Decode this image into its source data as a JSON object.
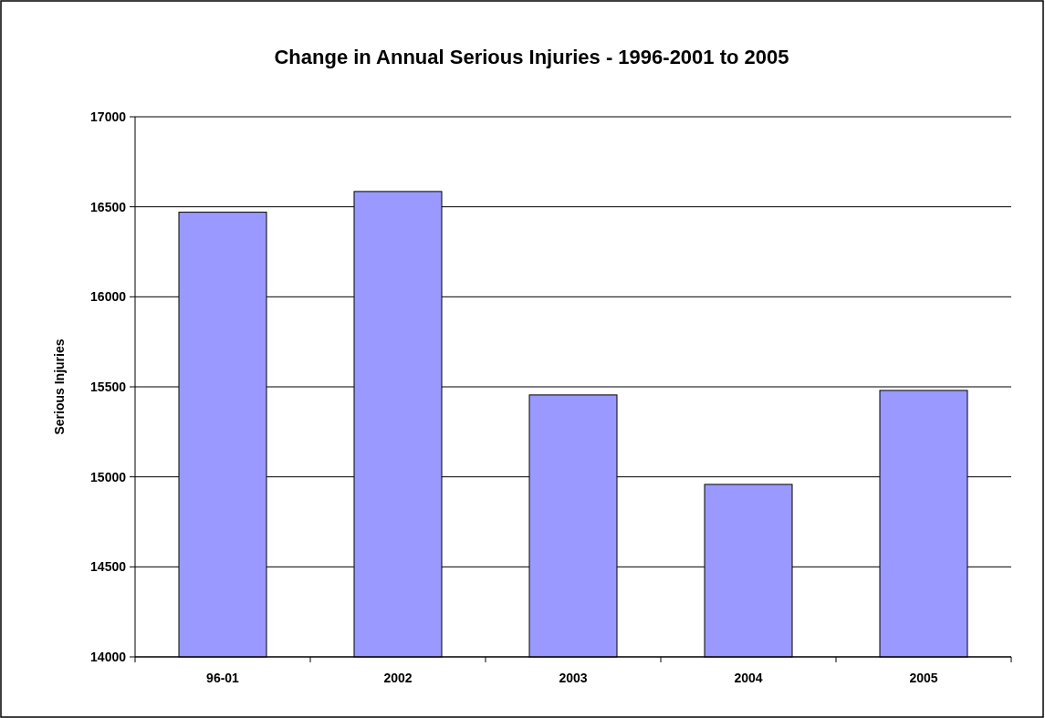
{
  "chart_data": {
    "type": "bar",
    "title": "Change in Annual Serious Injuries - 1996-2001 to 2005",
    "ylabel": "Serious Injuries",
    "categories": [
      "96-01",
      "2002",
      "2003",
      "2004",
      "2005"
    ],
    "values": [
      16470,
      16585,
      15455,
      14958,
      15480
    ],
    "color": "#9999ff",
    "ylim": [
      14000,
      17000
    ],
    "yticks": [
      14000,
      14500,
      15000,
      15500,
      16000,
      16500,
      17000
    ],
    "grid": "y"
  }
}
